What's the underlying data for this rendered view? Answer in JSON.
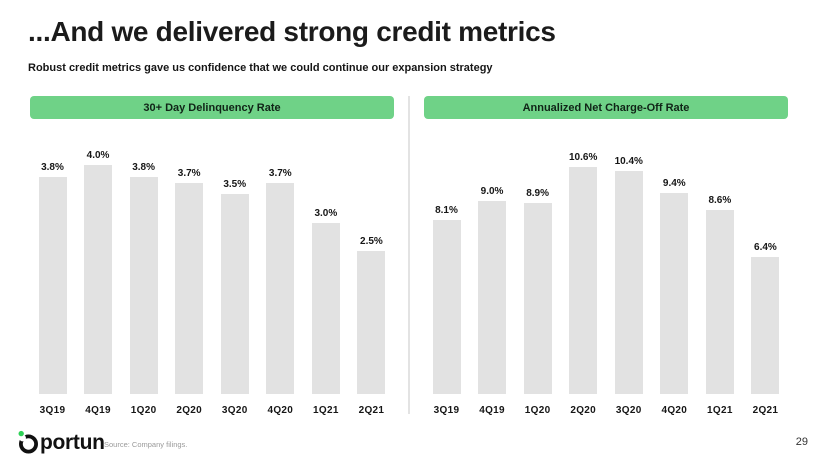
{
  "slide": {
    "title_prefix": "...And we delivered ",
    "title_highlight": "strong credit metrics",
    "subtitle": "Robust credit metrics gave us confidence that we could continue our expansion strategy",
    "source": "Source: Company filings.",
    "page_number": "29",
    "brand_name": "Oportun",
    "logo_wordmark_tail": "portun"
  },
  "colors": {
    "accent_green": "#6fd287",
    "underline_green": "#6fdd8c",
    "logo_dot_green": "#2fd157",
    "bar_gray": "#e2e2e2",
    "divider_gray": "#e3e3e3",
    "text_black": "#161616",
    "source_gray": "#9a9a9a"
  },
  "chart_data": [
    {
      "type": "bar",
      "title": "30+ Day Delinquency Rate",
      "categories": [
        "3Q19",
        "4Q19",
        "1Q20",
        "2Q20",
        "3Q20",
        "4Q20",
        "1Q21",
        "2Q21"
      ],
      "values": [
        3.8,
        4.0,
        3.8,
        3.7,
        3.5,
        3.7,
        3.0,
        2.5
      ],
      "labels": [
        "3.8%",
        "4.0%",
        "3.8%",
        "3.7%",
        "3.5%",
        "3.7%",
        "3.0%",
        "2.5%"
      ],
      "xlabel": "",
      "ylabel": "",
      "ylim": [
        0,
        4.2
      ],
      "grid": false,
      "legend": "none",
      "bar_color": "#e2e2e2"
    },
    {
      "type": "bar",
      "title": "Annualized Net Charge-Off Rate",
      "categories": [
        "3Q19",
        "4Q19",
        "1Q20",
        "2Q20",
        "3Q20",
        "4Q20",
        "1Q21",
        "2Q21"
      ],
      "values": [
        8.1,
        9.0,
        8.9,
        10.6,
        10.4,
        9.4,
        8.6,
        6.4
      ],
      "labels": [
        "8.1%",
        "9.0%",
        "8.9%",
        "10.6%",
        "10.4%",
        "9.4%",
        "8.6%",
        "6.4%"
      ],
      "xlabel": "",
      "ylabel": "",
      "ylim": [
        0,
        11.2
      ],
      "grid": false,
      "legend": "none",
      "bar_color": "#e2e2e2"
    }
  ]
}
